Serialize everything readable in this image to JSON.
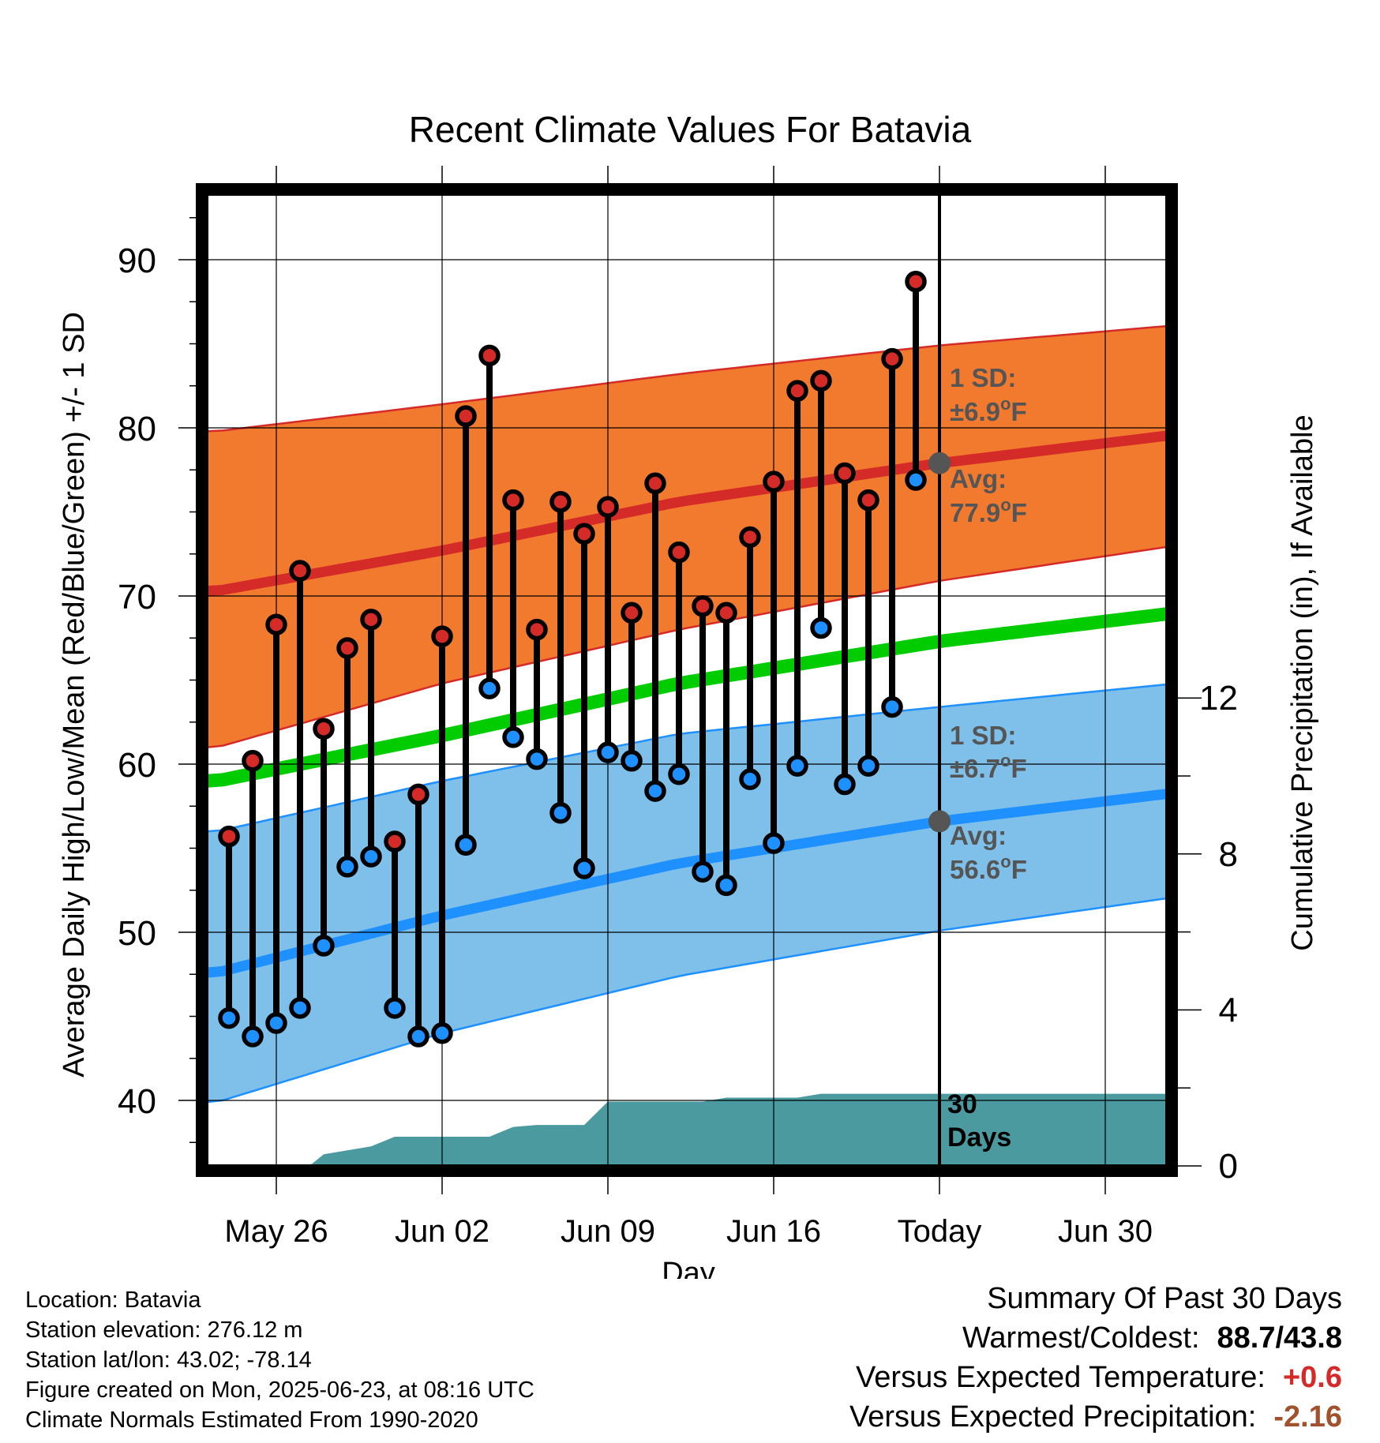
{
  "chart_data": {
    "type": "line",
    "title": "Recent Climate Values For Batavia",
    "xlabel": "Day",
    "ylabel": "Average Daily High/Low/Mean (Red/Blue/Green) +/- 1 SD",
    "y2label": "Cumulative Precipitation (in), If Available",
    "ylim": [
      35.5,
      93.5
    ],
    "y2lim": [
      0,
      20.8
    ],
    "yticks": [
      40,
      50,
      60,
      70,
      80,
      90
    ],
    "y2ticks": [
      0,
      4,
      8,
      12
    ],
    "xticks": [
      {
        "day": 3,
        "label": "May 26"
      },
      {
        "day": 10,
        "label": "Jun 02"
      },
      {
        "day": 17,
        "label": "Jun 09"
      },
      {
        "day": 24,
        "label": "Jun 16"
      },
      {
        "day": 31,
        "label": "Today"
      },
      {
        "day": 38,
        "label": "Jun 30"
      }
    ],
    "xlim": [
      0.2,
      41.2
    ],
    "grid": true,
    "today_day": 31,
    "colors": {
      "high_band": "#f27a2e",
      "high_band_edge": "#d42a28",
      "high_avg": "#d42a28",
      "low_band": "#7ec0e9",
      "low_band_edge": "#1e90ff",
      "low_avg": "#1e90ff",
      "mean": "#00cc00",
      "precip": "#4a9aa0",
      "high_marker": "#d42a28",
      "low_marker": "#1e90ff",
      "annotation": "#555555",
      "avg_dot": "#555555"
    },
    "normals": {
      "day": [
        0.5,
        10,
        20,
        31,
        41
      ],
      "high_avg": [
        70.3,
        72.7,
        75.6,
        77.9,
        79.6
      ],
      "high_upper": [
        79.8,
        81.4,
        83.2,
        84.9,
        86.1
      ],
      "high_lower": [
        61.0,
        64.8,
        68.0,
        70.9,
        73.0
      ],
      "mean": [
        59.0,
        61.7,
        64.8,
        67.3,
        69.0
      ],
      "low_avg": [
        47.6,
        51.0,
        54.1,
        56.6,
        58.3
      ],
      "low_upper": [
        56.0,
        59.0,
        61.8,
        63.4,
        64.8
      ],
      "low_lower": [
        39.9,
        44.0,
        47.4,
        50.1,
        52.1
      ]
    },
    "series": [
      {
        "name": "High",
        "day": [
          1,
          2,
          3,
          4,
          5,
          6,
          7,
          8,
          9,
          10,
          11,
          12,
          13,
          14,
          15,
          16,
          17,
          18,
          19,
          20,
          21,
          22,
          23,
          24,
          25,
          26,
          27,
          28,
          29,
          30
        ],
        "values": [
          55.7,
          60.2,
          68.3,
          71.5,
          62.1,
          66.9,
          68.6,
          55.4,
          58.2,
          67.6,
          80.7,
          84.3,
          75.7,
          68.0,
          75.6,
          73.7,
          75.3,
          69.0,
          76.7,
          72.6,
          69.4,
          69.0,
          73.5,
          76.8,
          82.2,
          82.8,
          77.3,
          75.7,
          84.1,
          88.7
        ]
      },
      {
        "name": "Low",
        "day": [
          1,
          2,
          3,
          4,
          5,
          6,
          7,
          8,
          9,
          10,
          11,
          12,
          13,
          14,
          15,
          16,
          17,
          18,
          19,
          20,
          21,
          22,
          23,
          24,
          25,
          26,
          27,
          28,
          29,
          30
        ],
        "values": [
          44.9,
          43.8,
          44.6,
          45.5,
          49.2,
          53.9,
          54.5,
          45.5,
          43.8,
          44.0,
          55.2,
          64.5,
          61.6,
          60.3,
          57.1,
          53.8,
          60.7,
          60.2,
          58.4,
          59.4,
          53.6,
          52.8,
          59.1,
          55.3,
          59.9,
          68.1,
          58.8,
          59.9,
          63.4,
          76.9
        ]
      },
      {
        "name": "Cumulative Precipitation",
        "day": [
          0.2,
          4,
          4.5,
          5,
          6,
          7,
          8,
          12,
          13,
          14,
          15,
          16,
          17,
          21,
          22,
          25,
          26,
          27,
          41.2
        ],
        "values": [
          0,
          0,
          0.05,
          0.3,
          0.4,
          0.5,
          0.75,
          0.75,
          1.0,
          1.05,
          1.05,
          1.05,
          1.65,
          1.65,
          1.75,
          1.75,
          1.85,
          1.85,
          1.85
        ]
      }
    ],
    "annotations": {
      "high_sd_label": "1 SD:",
      "high_sd_value": "±6.9",
      "high_avg_label": "Avg:",
      "high_avg_value": "77.9",
      "low_sd_label": "1 SD:",
      "low_sd_value": "±6.7",
      "low_avg_label": "Avg:",
      "low_avg_value": "56.6",
      "unit_sup": "o",
      "unit_letter": "F",
      "days_line1": "30",
      "days_line2": "Days"
    }
  },
  "footer": {
    "location": "Location: Batavia",
    "elevation": "Station elevation: 276.12 m",
    "latlon": "Station lat/lon: 43.02; -78.14",
    "created": "Figure created on Mon, 2025-06-23, at 08:16 UTC",
    "normals": "Climate Normals Estimated From 1990-2020"
  },
  "summary": {
    "title": "Summary Of Past 30 Days",
    "warmest_label": "Warmest/Coldest:",
    "warmest_value": "88.7/43.8",
    "temp_label": "Versus Expected Temperature:",
    "temp_value": "+0.6",
    "temp_color": "#d42a28",
    "precip_label": "Versus Expected Precipitation:",
    "precip_value": "-2.16",
    "precip_color": "#a0522d"
  }
}
